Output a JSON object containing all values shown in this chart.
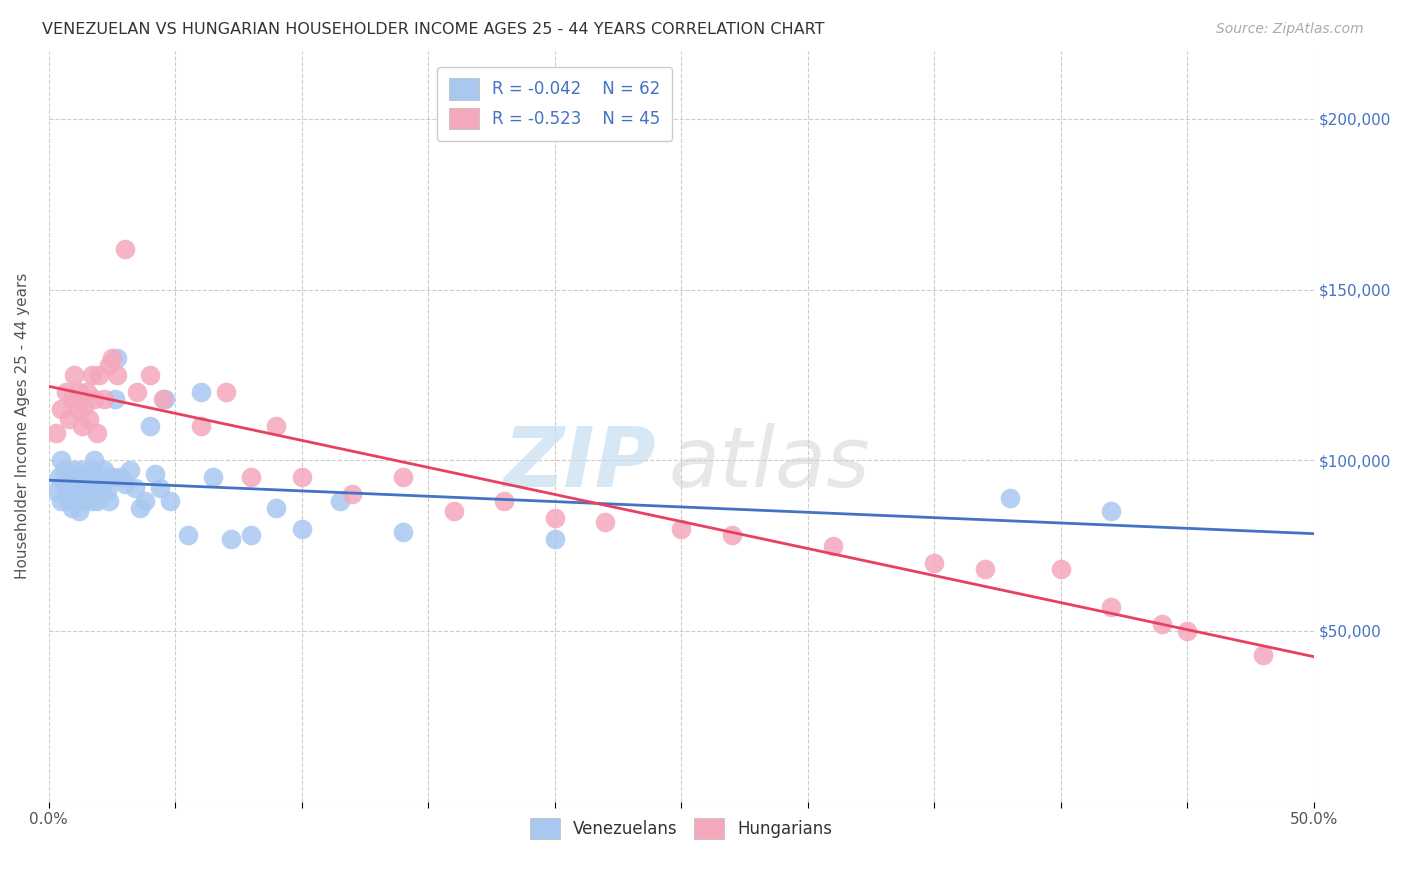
{
  "title": "VENEZUELAN VS HUNGARIAN HOUSEHOLDER INCOME AGES 25 - 44 YEARS CORRELATION CHART",
  "source": "Source: ZipAtlas.com",
  "ylabel": "Householder Income Ages 25 - 44 years",
  "xlim": [
    0.0,
    0.5
  ],
  "ylim": [
    0,
    220000
  ],
  "yticks": [
    0,
    50000,
    100000,
    150000,
    200000
  ],
  "xticks": [
    0.0,
    0.05,
    0.1,
    0.15,
    0.2,
    0.25,
    0.3,
    0.35,
    0.4,
    0.45,
    0.5
  ],
  "ytick_labels_right": [
    "",
    "$50,000",
    "$100,000",
    "$150,000",
    "$200,000"
  ],
  "venezuelan_color": "#a8c8f0",
  "hungarian_color": "#f4a8bc",
  "venezuelan_line_color": "#4472C4",
  "hungarian_line_color": "#E84060",
  "legend_R_ven": "R = -0.042",
  "legend_N_ven": "N = 62",
  "legend_R_hun": "R = -0.523",
  "legend_N_hun": "N = 45",
  "watermark_zip": "ZIP",
  "watermark_atlas": "atlas",
  "venezuelan_x": [
    0.003,
    0.004,
    0.005,
    0.005,
    0.006,
    0.006,
    0.007,
    0.007,
    0.008,
    0.008,
    0.009,
    0.009,
    0.01,
    0.01,
    0.011,
    0.011,
    0.012,
    0.012,
    0.013,
    0.013,
    0.014,
    0.014,
    0.015,
    0.015,
    0.016,
    0.016,
    0.017,
    0.017,
    0.018,
    0.018,
    0.019,
    0.02,
    0.021,
    0.022,
    0.023,
    0.024,
    0.025,
    0.026,
    0.027,
    0.028,
    0.03,
    0.032,
    0.034,
    0.036,
    0.038,
    0.04,
    0.042,
    0.044,
    0.046,
    0.048,
    0.055,
    0.06,
    0.065,
    0.072,
    0.08,
    0.09,
    0.1,
    0.115,
    0.14,
    0.2,
    0.38,
    0.42
  ],
  "venezuelan_y": [
    91000,
    95000,
    100000,
    88000,
    93000,
    97000,
    89000,
    95000,
    92000,
    88000,
    95000,
    86000,
    97000,
    90000,
    93000,
    88000,
    95000,
    85000,
    90000,
    97000,
    92000,
    88000,
    94000,
    89000,
    95000,
    91000,
    97000,
    88000,
    93000,
    100000,
    88000,
    95000,
    92000,
    97000,
    91000,
    88000,
    95000,
    118000,
    130000,
    95000,
    93000,
    97000,
    92000,
    86000,
    88000,
    110000,
    96000,
    92000,
    118000,
    88000,
    78000,
    120000,
    95000,
    77000,
    78000,
    86000,
    80000,
    88000,
    79000,
    77000,
    89000,
    85000
  ],
  "hungarian_x": [
    0.003,
    0.005,
    0.007,
    0.008,
    0.009,
    0.01,
    0.011,
    0.012,
    0.013,
    0.014,
    0.015,
    0.016,
    0.017,
    0.018,
    0.019,
    0.02,
    0.022,
    0.024,
    0.025,
    0.027,
    0.03,
    0.035,
    0.04,
    0.045,
    0.06,
    0.07,
    0.08,
    0.09,
    0.1,
    0.12,
    0.14,
    0.16,
    0.18,
    0.2,
    0.22,
    0.25,
    0.27,
    0.31,
    0.35,
    0.37,
    0.4,
    0.42,
    0.44,
    0.45,
    0.48
  ],
  "hungarian_y": [
    108000,
    115000,
    120000,
    112000,
    118000,
    125000,
    115000,
    120000,
    110000,
    116000,
    120000,
    112000,
    125000,
    118000,
    108000,
    125000,
    118000,
    128000,
    130000,
    125000,
    162000,
    120000,
    125000,
    118000,
    110000,
    120000,
    95000,
    110000,
    95000,
    90000,
    95000,
    85000,
    88000,
    83000,
    82000,
    80000,
    78000,
    75000,
    70000,
    68000,
    68000,
    57000,
    52000,
    50000,
    43000
  ]
}
